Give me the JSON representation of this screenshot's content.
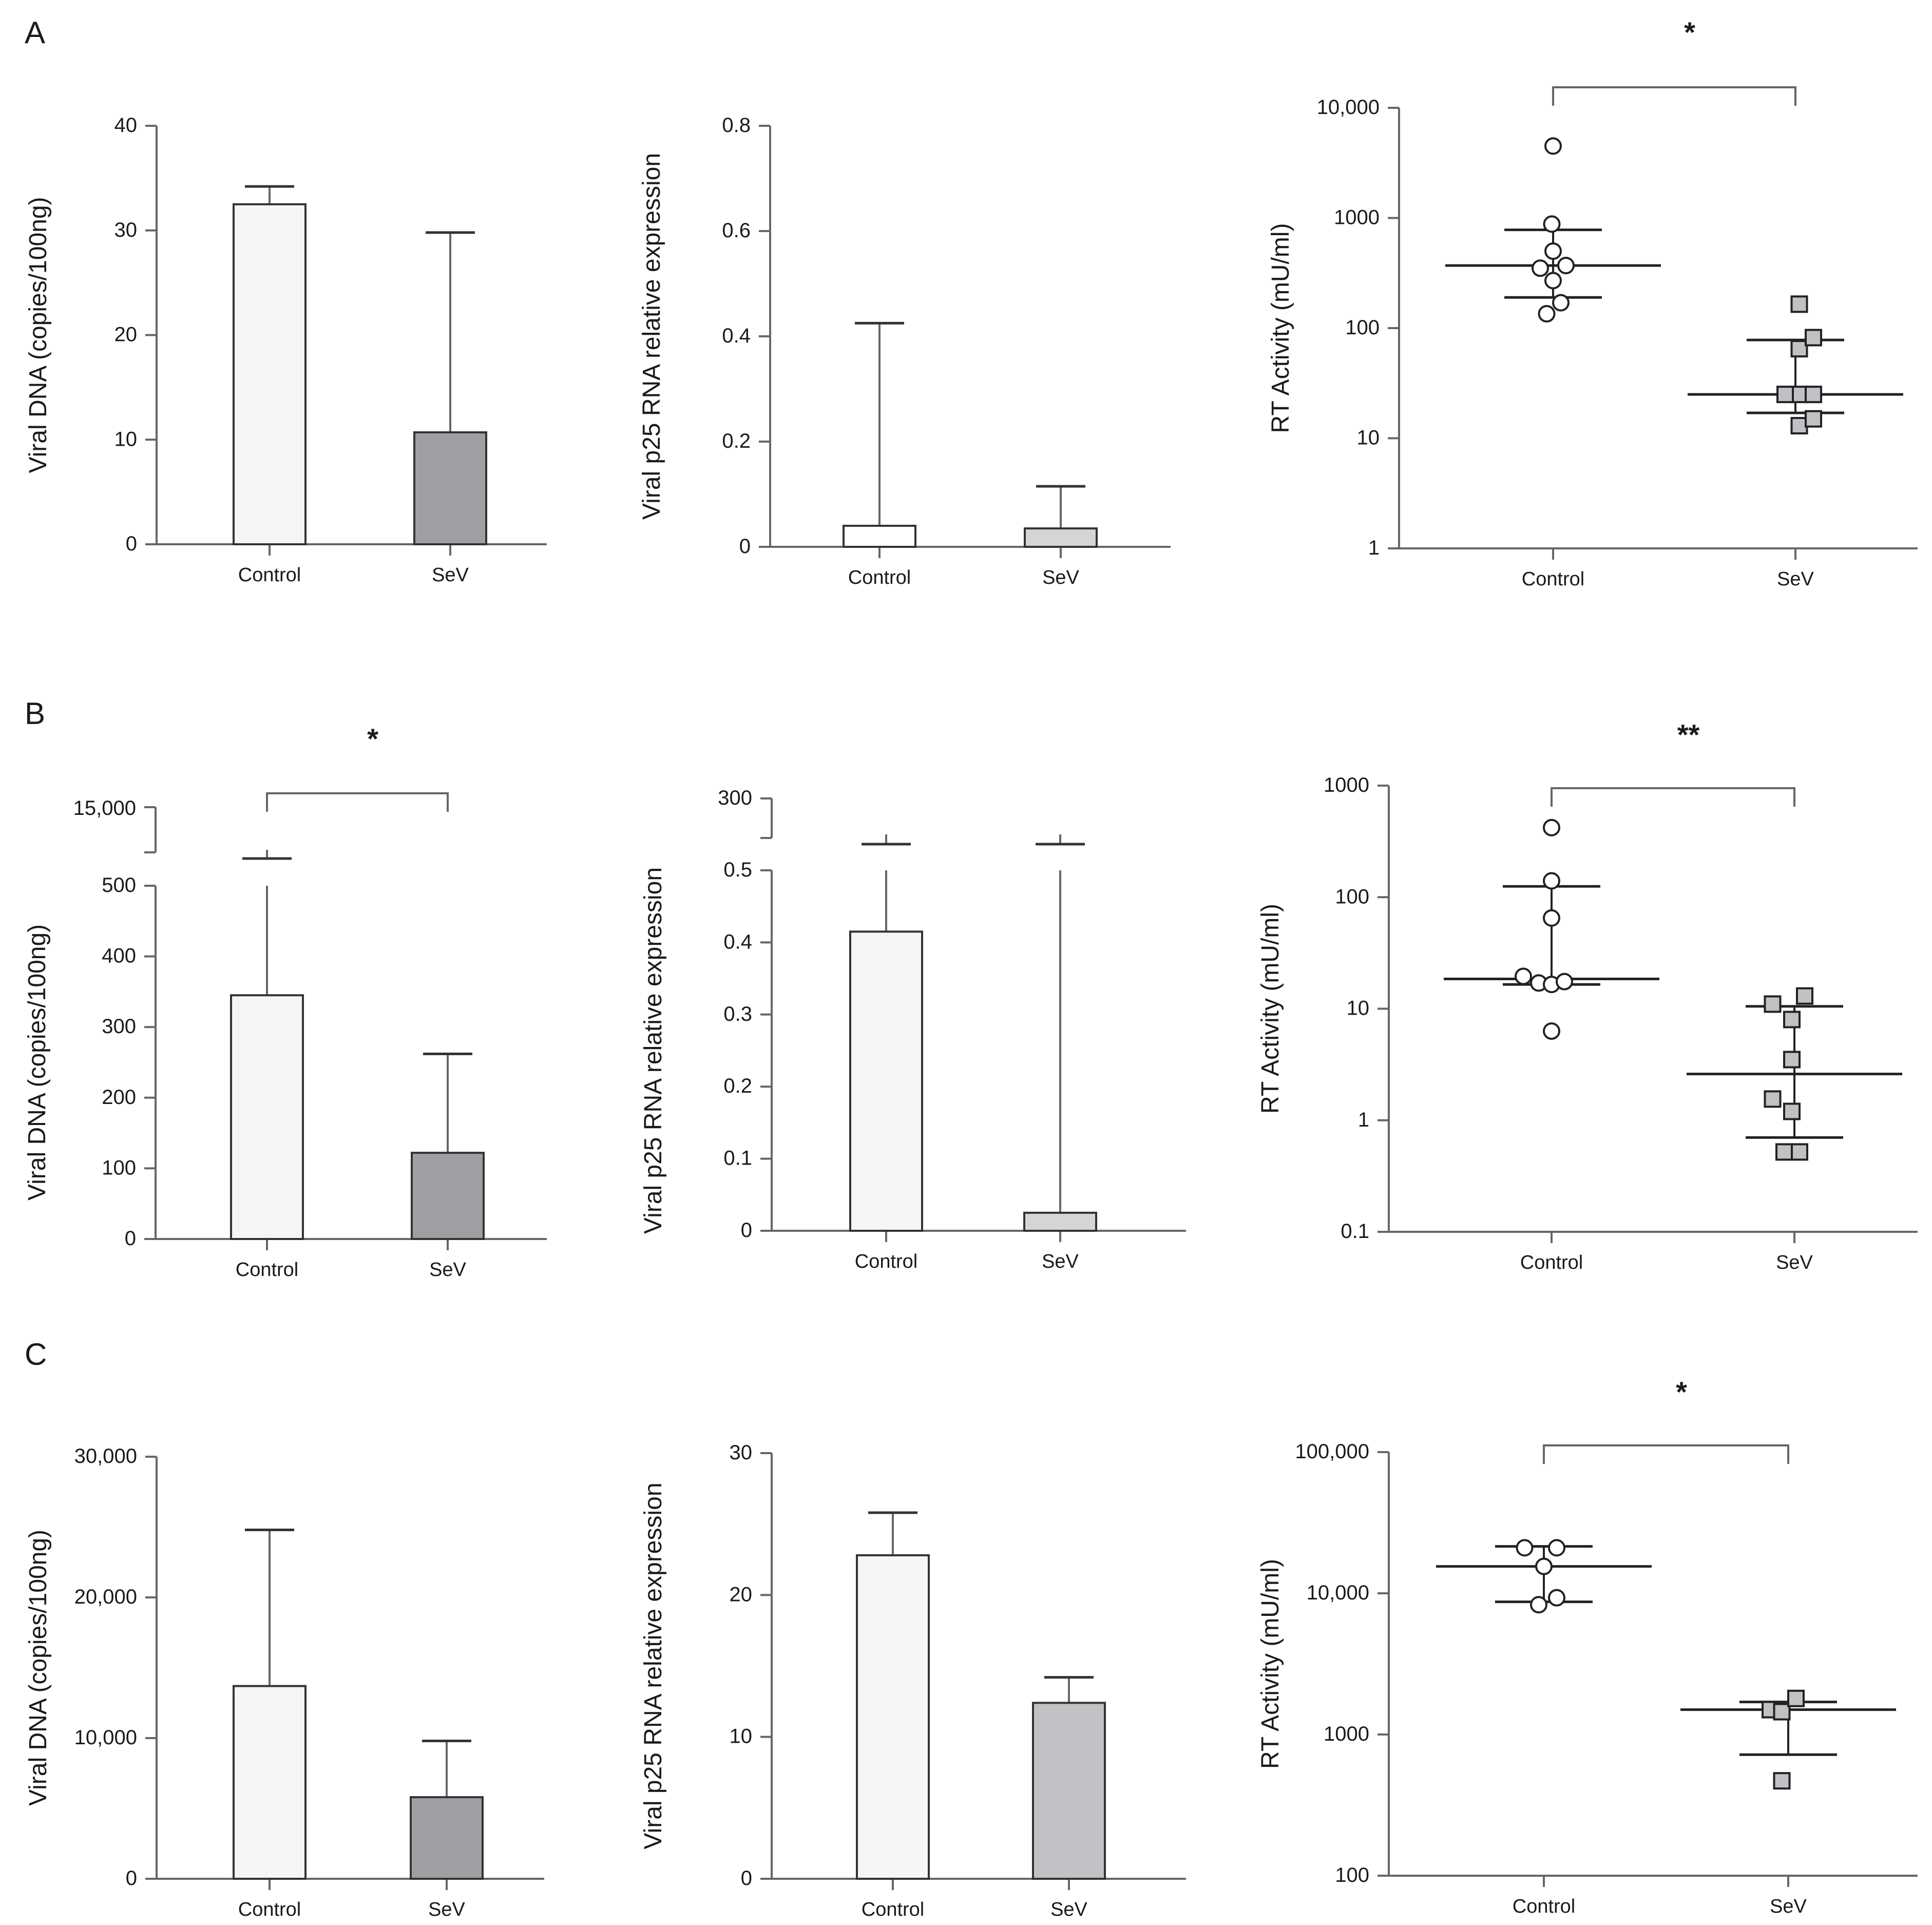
{
  "figure": {
    "panels": [
      {
        "letter": "A"
      },
      {
        "letter": "B"
      },
      {
        "letter": "C"
      }
    ]
  },
  "colors": {
    "axis": "#666666",
    "text": "#1a1a1a",
    "control_fill": "#f5f5f5",
    "sev_dark": "#9d9fa3",
    "sev_light": "#d4d5d7",
    "point_sev": "#bfc1c5"
  },
  "chart_data": [
    {
      "id": "A1",
      "type": "bar",
      "ylabel": "Viral DNA (copies/100ng)",
      "categories": [
        "Control",
        "SeV"
      ],
      "values": [
        32.5,
        10.7
      ],
      "errors_upper": [
        34.2,
        29.8
      ],
      "ylim": [
        0,
        40
      ],
      "yticks": [
        0,
        10,
        20,
        30,
        40
      ],
      "ytick_labels": [
        "0",
        "10",
        "20",
        "30",
        "40"
      ],
      "fills": [
        "#f5f5f5",
        "#9d9fa3"
      ],
      "significance": null
    },
    {
      "id": "A2",
      "type": "bar",
      "ylabel": "Viral p25 RNA relative expression",
      "categories": [
        "Control",
        "SeV"
      ],
      "values": [
        0.04,
        0.035
      ],
      "errors_upper": [
        0.425,
        0.115
      ],
      "ylim": [
        0,
        0.8
      ],
      "yticks": [
        0,
        0.2,
        0.4,
        0.6,
        0.8
      ],
      "ytick_labels": [
        "0",
        "0.2",
        "0.4",
        "0.6",
        "0.8"
      ],
      "fills": [
        "#ffffff",
        "#d4d5d7"
      ],
      "significance": null
    },
    {
      "id": "A3",
      "type": "scatter",
      "scale": "log",
      "ylabel": "RT Activity (mU/ml)",
      "categories": [
        "Control",
        "SeV"
      ],
      "yticks": [
        1,
        10,
        100,
        1000,
        10000
      ],
      "ytick_labels": [
        "1",
        "10",
        "100",
        "1000",
        "10,000"
      ],
      "ylim": [
        1,
        10000
      ],
      "series": [
        {
          "name": "Control",
          "marker": "circle",
          "fill": "#ffffff",
          "points": [
            [
              0,
              4500
            ],
            [
              -0.01,
              880
            ],
            [
              0,
              500
            ],
            [
              -0.1,
              350
            ],
            [
              0.1,
              370
            ],
            [
              0,
              270
            ],
            [
              -0.05,
              135
            ],
            [
              0.06,
              170
            ]
          ],
          "median": 370,
          "q1": 190,
          "q3": 780
        },
        {
          "name": "SeV",
          "marker": "square",
          "fill": "#bfc1c5",
          "points": [
            [
              0.03,
              165
            ],
            [
              0.03,
              65
            ],
            [
              0.14,
              82
            ],
            [
              -0.08,
              25
            ],
            [
              0.04,
              25
            ],
            [
              0.14,
              25
            ],
            [
              0.03,
              13
            ],
            [
              0.14,
              15
            ]
          ],
          "median": 25,
          "q1": 17,
          "q3": 78
        }
      ],
      "significance": "*"
    },
    {
      "id": "B1",
      "type": "bar",
      "broken_axis": true,
      "ylabel": "Viral DNA (copies/100ng)",
      "categories": [
        "Control",
        "SeV"
      ],
      "values": [
        345,
        122
      ],
      "errors_upper": [
        14500,
        262
      ],
      "ylim": [
        0,
        500
      ],
      "yticks": [
        0,
        100,
        200,
        300,
        400,
        500
      ],
      "ytick_labels": [
        "0",
        "100",
        "200",
        "300",
        "400",
        "500"
      ],
      "break_top_label": "15,000",
      "fills": [
        "#f5f5f5",
        "#9d9fa3"
      ],
      "significance": "*"
    },
    {
      "id": "B2",
      "type": "bar",
      "broken_axis": true,
      "ylabel": "Viral p25 RNA relative expression",
      "categories": [
        "Control",
        "SeV"
      ],
      "values": [
        0.415,
        0.025
      ],
      "errors_upper": [
        280,
        255
      ],
      "ylim": [
        0,
        0.5
      ],
      "yticks": [
        0,
        0.1,
        0.2,
        0.3,
        0.4,
        0.5
      ],
      "ytick_labels": [
        "0",
        "0.1",
        "0.2",
        "0.3",
        "0.4",
        "0.5"
      ],
      "break_top_label": "300",
      "fills": [
        "#f5f5f5",
        "#d4d5d7"
      ],
      "significance": null
    },
    {
      "id": "B3",
      "type": "scatter",
      "scale": "log",
      "ylabel": "RT Activity (mU/ml)",
      "categories": [
        "Control",
        "SeV"
      ],
      "yticks": [
        0.1,
        1,
        10,
        100,
        1000
      ],
      "ytick_labels": [
        "0.1",
        "1",
        "10",
        "100",
        "1000"
      ],
      "ylim": [
        0.1,
        1000
      ],
      "series": [
        {
          "name": "Control",
          "marker": "circle",
          "fill": "#ffffff",
          "points": [
            [
              0,
              420
            ],
            [
              0,
              140
            ],
            [
              0,
              65
            ],
            [
              -0.22,
              19.5
            ],
            [
              -0.1,
              17
            ],
            [
              0,
              16.5
            ],
            [
              0.1,
              17.5
            ],
            [
              0,
              6.3
            ]
          ],
          "median": 18.5,
          "q1": 16.5,
          "q3": 125
        },
        {
          "name": "SeV",
          "marker": "square",
          "fill": "#bfc1c5",
          "points": [
            [
              -0.17,
              11
            ],
            [
              0.08,
              13
            ],
            [
              -0.02,
              8
            ],
            [
              -0.02,
              3.5
            ],
            [
              -0.17,
              1.55
            ],
            [
              -0.02,
              1.2
            ],
            [
              -0.08,
              0.52
            ],
            [
              0.04,
              0.52
            ]
          ],
          "median": 2.6,
          "q1": 0.7,
          "q3": 10.5
        },
        {
          "name": "",
          "marker": "",
          "fill": "",
          "points": [],
          "median": null,
          "q1": null,
          "q3": null
        }
      ],
      "significance": "**"
    },
    {
      "id": "C1",
      "type": "bar",
      "ylabel": "Viral DNA (copies/100ng)",
      "categories": [
        "Control",
        "SeV"
      ],
      "values": [
        13700,
        5800
      ],
      "errors_upper": [
        24800,
        9800
      ],
      "ylim": [
        0,
        30000
      ],
      "yticks": [
        0,
        10000,
        20000,
        30000
      ],
      "ytick_labels": [
        "0",
        "10,000",
        "20,000",
        "30,000"
      ],
      "fills": [
        "#f5f5f5",
        "#9d9fa3"
      ],
      "significance": null
    },
    {
      "id": "C2",
      "type": "bar",
      "ylabel": "Viral p25 RNA relative expression",
      "categories": [
        "Control",
        "SeV"
      ],
      "values": [
        22.8,
        12.4
      ],
      "errors_upper": [
        25.8,
        14.2
      ],
      "ylim": [
        0,
        30
      ],
      "yticks": [
        0,
        10,
        20,
        30
      ],
      "ytick_labels": [
        "0",
        "10",
        "20",
        "30"
      ],
      "fills": [
        "#f5f5f5",
        "#c1c2c6"
      ],
      "significance": null
    },
    {
      "id": "C3",
      "type": "scatter",
      "scale": "log",
      "ylabel": "RT Activity (mU/ml)",
      "categories": [
        "Control",
        "SeV"
      ],
      "yticks": [
        100,
        1000,
        10000,
        100000
      ],
      "ytick_labels": [
        "100",
        "1000",
        "10,000",
        "100,000"
      ],
      "ylim": [
        100,
        100000
      ],
      "series": [
        {
          "name": "Control",
          "marker": "circle",
          "fill": "#ffffff",
          "points": [
            [
              -0.15,
              21000
            ],
            [
              0.1,
              21000
            ],
            [
              0,
              15500
            ],
            [
              -0.04,
              8300
            ],
            [
              0.1,
              9300
            ]
          ],
          "median": 15500,
          "q1": 8700,
          "q3": 21500
        },
        {
          "name": "SeV",
          "marker": "square",
          "fill": "#bfc1c5",
          "points": [
            [
              -0.14,
              1500
            ],
            [
              -0.05,
              1450
            ],
            [
              0.06,
              1800
            ],
            [
              -0.05,
              470
            ]
          ],
          "median": 1500,
          "q1": 720,
          "q3": 1700
        }
      ],
      "significance": "*"
    }
  ]
}
